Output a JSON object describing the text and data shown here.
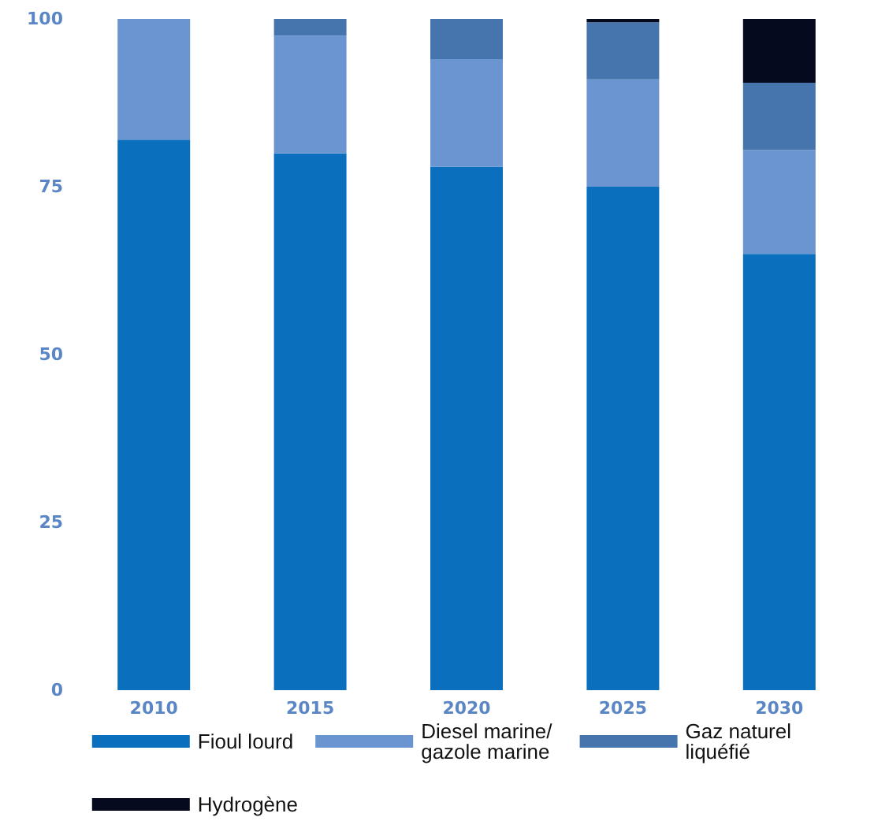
{
  "chart_data": {
    "type": "bar",
    "stacked": true,
    "categories": [
      "2010",
      "2015",
      "2020",
      "2025",
      "2030"
    ],
    "series": [
      {
        "name": "Fioul lourd",
        "color": "#0a6fbd",
        "values": [
          82,
          80,
          78,
          75,
          65
        ]
      },
      {
        "name": "Diesel marine/ gazole marine",
        "color": "#6a95d0",
        "values": [
          18,
          17.5,
          16,
          16,
          15.5
        ]
      },
      {
        "name": "Gaz naturel liquéfié",
        "color": "#4674ad",
        "values": [
          0,
          2.5,
          6,
          8.5,
          10
        ]
      },
      {
        "name": "Hydrogène",
        "color": "#050a1e",
        "values": [
          0,
          0,
          0,
          0.5,
          9.5
        ]
      }
    ],
    "ylim": [
      0,
      100
    ],
    "yticks": [
      0,
      25,
      50,
      75,
      100
    ],
    "grid": false,
    "legend": "bottom"
  }
}
